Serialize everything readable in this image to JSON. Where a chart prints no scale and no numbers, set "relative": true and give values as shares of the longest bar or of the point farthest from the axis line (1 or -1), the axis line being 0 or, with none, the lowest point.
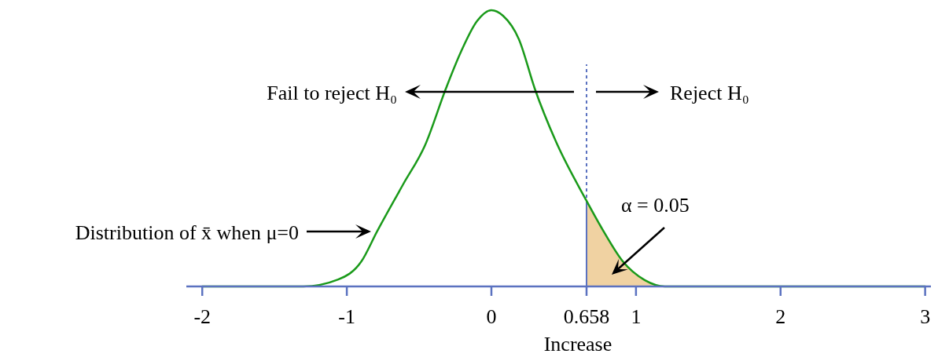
{
  "chart_data": {
    "type": "line",
    "relative": true,
    "xlabel": "Increase",
    "xlim": [
      -2.11,
      3.04
    ],
    "xticks": [
      -2,
      -1,
      0,
      0.658,
      1,
      2,
      3
    ],
    "series": [
      {
        "type": "area",
        "color": "#f0d2a2",
        "x": [
          0.658,
          0.77,
          0.91,
          1.06,
          1.2
        ],
        "values": [
          0.31,
          0.205,
          0.09,
          0.023,
          0
        ]
      },
      {
        "color": "#1a9a1a",
        "x": [
          -2,
          -1.3,
          -1.06,
          -0.9,
          -0.79,
          -0.61,
          -0.46,
          -0.315,
          -0.21,
          -0.1,
          0,
          0.08,
          0.19,
          0.3,
          0.445,
          0.658,
          0.77,
          0.91,
          1.06,
          1.2,
          3
        ],
        "values": [
          0,
          0,
          0.025,
          0.09,
          0.2,
          0.37,
          0.51,
          0.716,
          0.85,
          0.96,
          1,
          0.98,
          0.895,
          0.716,
          0.526,
          0.31,
          0.205,
          0.09,
          0.023,
          0,
          0
        ]
      }
    ],
    "ref_lines": [
      {
        "axis": "x",
        "value": 0.658,
        "color": "#5b72c0",
        "line_style": "dashed"
      }
    ],
    "annotations": [
      "Fail to reject H₀",
      "Reject H₀",
      "Distribution of x̄ when μ=0",
      "α = 0.05"
    ]
  }
}
